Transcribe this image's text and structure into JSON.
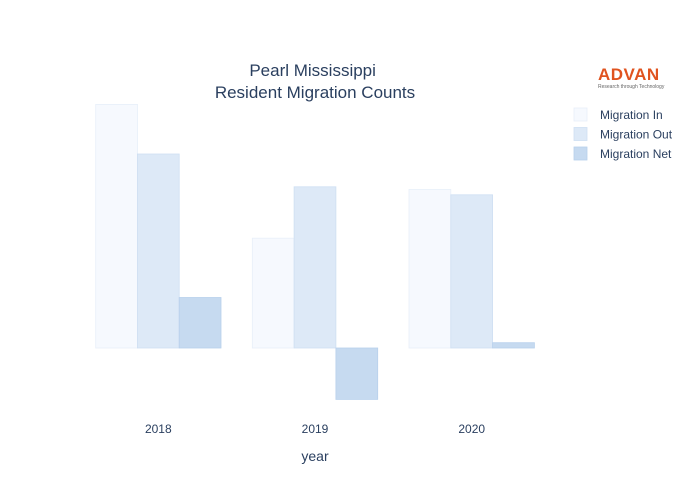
{
  "logo": {
    "name": "ADVAN",
    "tagline": "Research through Technology"
  },
  "chart_data": {
    "type": "bar",
    "title_lines": [
      "Pearl Mississippi",
      "Resident Migration Counts"
    ],
    "xlabel": "year",
    "ylabel": "",
    "categories": [
      "2018",
      "2019",
      "2020"
    ],
    "series": [
      {
        "name": "Migration In",
        "values": [
          2750,
          1240,
          1790
        ],
        "color": "#f6f9fe",
        "stroke": "#e8eff9"
      },
      {
        "name": "Migration Out",
        "values": [
          2190,
          1820,
          1730
        ],
        "color": "#dde9f7",
        "stroke": "#cfdff2"
      },
      {
        "name": "Migration Net",
        "values": [
          570,
          -580,
          60
        ],
        "color": "#c6daf0",
        "stroke": "#b8d0ec"
      }
    ],
    "ylim": [
      -700,
      2800
    ],
    "grid": false,
    "y_ticks_visible": false,
    "legend_position": "top-right"
  }
}
